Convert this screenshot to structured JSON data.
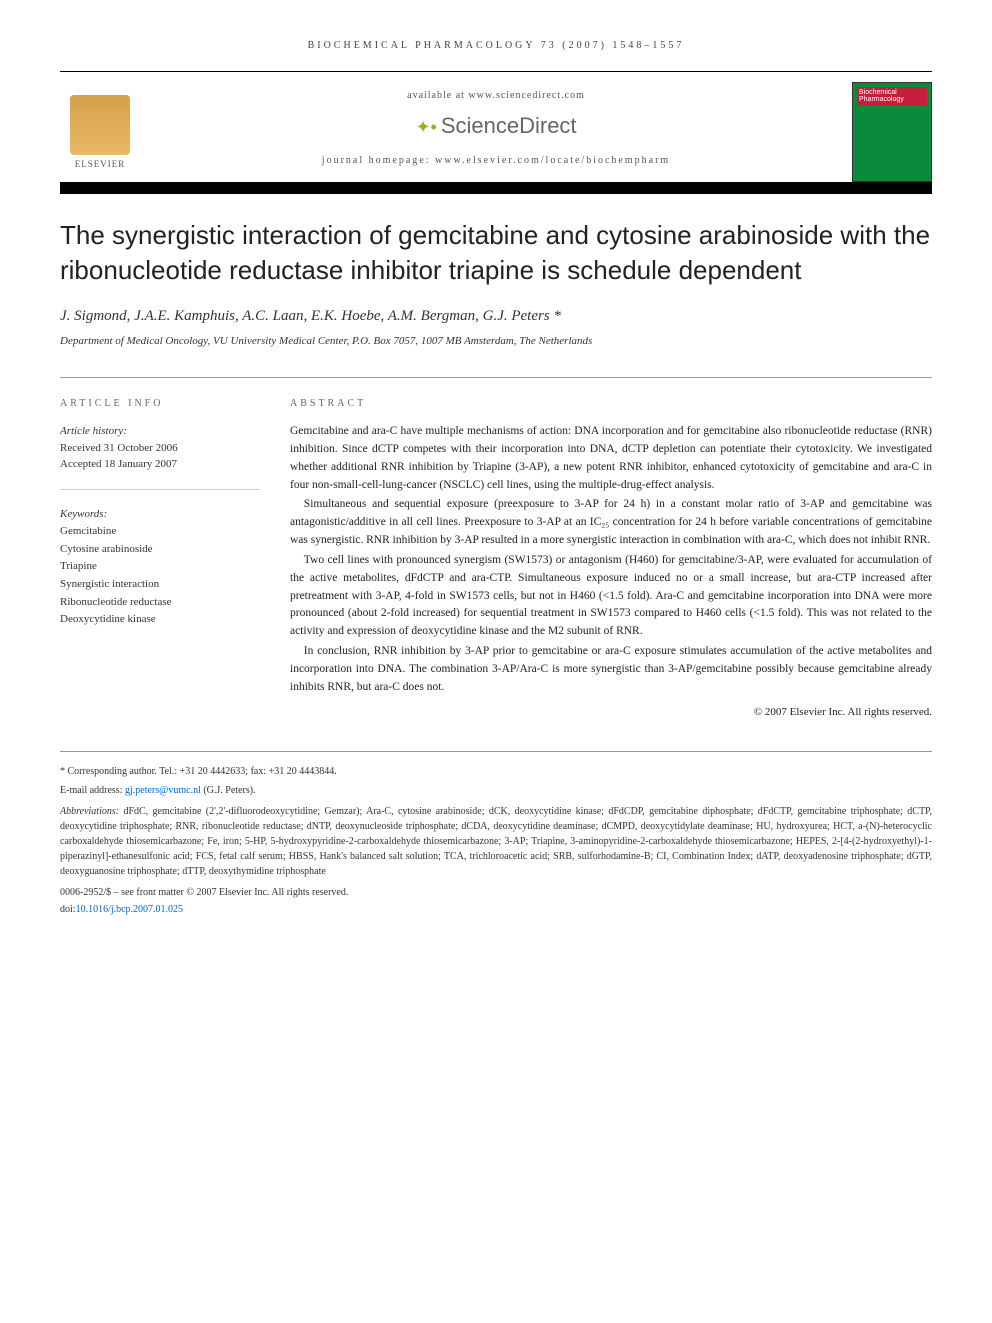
{
  "journal_header": "BIOCHEMICAL PHARMACOLOGY 73 (2007) 1548–1557",
  "banner": {
    "available_text": "available at www.sciencedirect.com",
    "sciencedirect": "ScienceDirect",
    "homepage": "journal homepage: www.elsevier.com/locate/biochempharm",
    "elsevier_label": "ELSEVIER",
    "journal_cover_title": "Biochemical Pharmacology"
  },
  "title": "The synergistic interaction of gemcitabine and cytosine arabinoside with the ribonucleotide reductase inhibitor triapine is schedule dependent",
  "authors": "J. Sigmond, J.A.E. Kamphuis, A.C. Laan, E.K. Hoebe, A.M. Bergman, G.J. Peters *",
  "affiliation": "Department of Medical Oncology, VU University Medical Center, P.O. Box 7057, 1007 MB Amsterdam, The Netherlands",
  "info": {
    "header": "ARTICLE INFO",
    "history_label": "Article history:",
    "received": "Received 31 October 2006",
    "accepted": "Accepted 18 January 2007",
    "keywords_label": "Keywords:",
    "keywords": [
      "Gemcitabine",
      "Cytosine arabinoside",
      "Triapine",
      "Synergistic interaction",
      "Ribonucleotide reductase",
      "Deoxycytidine kinase"
    ]
  },
  "abstract": {
    "header": "ABSTRACT",
    "p1": "Gemcitabine and ara-C have multiple mechanisms of action: DNA incorporation and for gemcitabine also ribonucleotide reductase (RNR) inhibition. Since dCTP competes with their incorporation into DNA, dCTP depletion can potentiate their cytotoxicity. We investigated whether additional RNR inhibition by Triapine (3-AP), a new potent RNR inhibitor, enhanced cytotoxicity of gemcitabine and ara-C in four non-small-cell-lung-cancer (NSCLC) cell lines, using the multiple-drug-effect analysis.",
    "p2": "Simultaneous and sequential exposure (preexposure to 3-AP for 24 h) in a constant molar ratio of 3-AP and gemcitabine was antagonistic/additive in all cell lines. Preexposure to 3-AP at an IC₂₅ concentration for 24 h before variable concentrations of gemcitabine was synergistic. RNR inhibition by 3-AP resulted in a more synergistic interaction in combination with ara-C, which does not inhibit RNR.",
    "p3": "Two cell lines with pronounced synergism (SW1573) or antagonism (H460) for gemcitabine/3-AP, were evaluated for accumulation of the active metabolites, dFdCTP and ara-CTP. Simultaneous exposure induced no or a small increase, but ara-CTP increased after pretreatment with 3-AP, 4-fold in SW1573 cells, but not in H460 (<1.5 fold). Ara-C and gemcitabine incorporation into DNA were more pronounced (about 2-fold increased) for sequential treatment in SW1573 compared to H460 cells (<1.5 fold). This was not related to the activity and expression of deoxycytidine kinase and the M2 subunit of RNR.",
    "p4": "In conclusion, RNR inhibition by 3-AP prior to gemcitabine or ara-C exposure stimulates accumulation of the active metabolites and incorporation into DNA. The combination 3-AP/Ara-C is more synergistic than 3-AP/gemcitabine possibly because gemcitabine already inhibits RNR, but ara-C does not.",
    "copyright": "© 2007 Elsevier Inc. All rights reserved."
  },
  "footer": {
    "corresponding": "* Corresponding author. Tel.: +31 20 4442633; fax: +31 20 4443844.",
    "email_label": "E-mail address: ",
    "email": "gj.peters@vumc.nl",
    "email_suffix": " (G.J. Peters).",
    "abbrev_label": "Abbreviations: ",
    "abbreviations": "dFdC, gemcitabine (2',2'-difluorodeoxycytidine; Gemzar); Ara-C, cytosine arabinoside; dCK, deoxycytidine kinase; dFdCDP, gemcitabine diphosphate; dFdCTP, gemcitabine triphosphate; dCTP, deoxycytidine triphosphate; RNR, ribonucleotide reductase; dNTP, deoxynucleoside triphosphate; dCDA, deoxycytidine deaminase; dCMPD, deoxycytidylate deaminase; HU, hydroxyurea; HCT, a-(N)-heterocyclic carboxaldehyde thiosemicarbazone; Fe, iron; 5-HP, 5-hydroxypyridine-2-carboxaldehyde thiosemicarbazone; 3-AP; Triapine, 3-aminopyridine-2-carboxaldehyde thiosemicarbazone; HEPES, 2-[4-(2-hydroxyethyl)-1-piperazinyl]-ethanesulfonic acid; FCS, fetal calf serum; HBSS, Hank's balanced salt solution; TCA, trichloroacetic acid; SRB, sulforhodamine-B; CI, Combination Index; dATP, deoxyadenosine triphosphate; dGTP, deoxyguanosine triphosphate; dTTP, deoxythymidine triphosphate",
    "issn": "0006-2952/$ – see front matter © 2007 Elsevier Inc. All rights reserved.",
    "doi_label": "doi:",
    "doi": "10.1016/j.bcp.2007.01.025"
  },
  "colors": {
    "link": "#0066cc",
    "elsevier_orange": "#d4a04a",
    "journal_green": "#0a8a3a",
    "journal_red": "#c41e3a",
    "sd_green": "#8ab825"
  }
}
